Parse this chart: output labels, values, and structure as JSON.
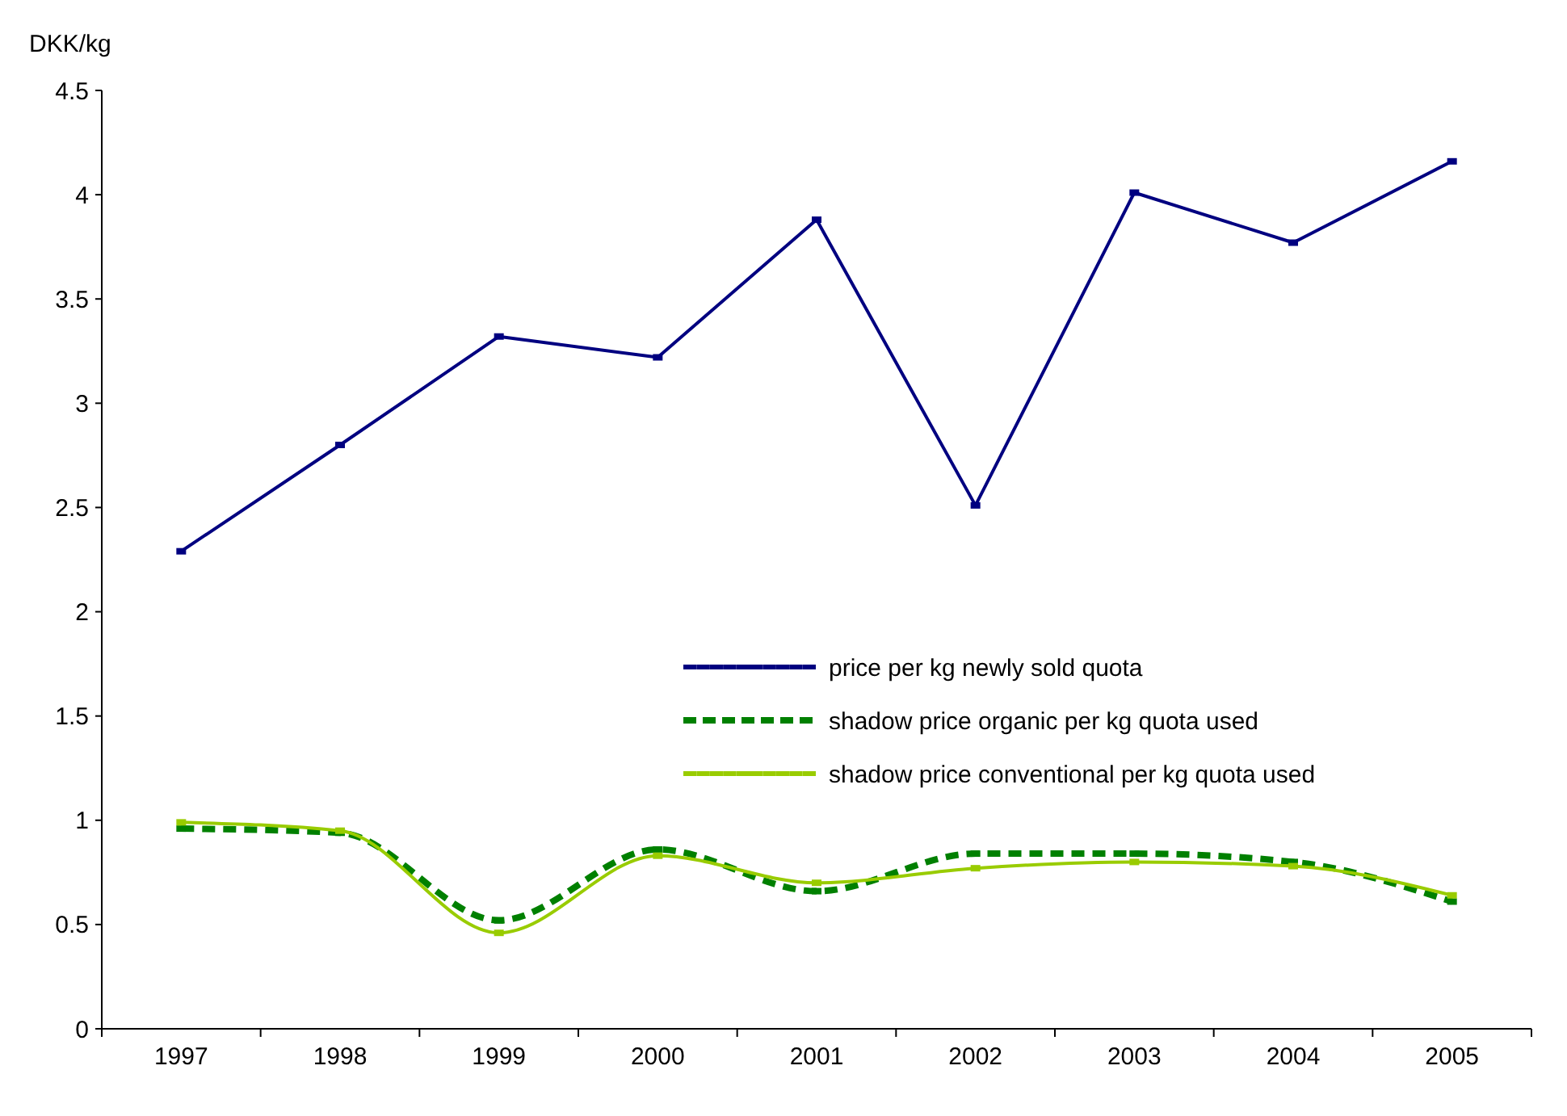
{
  "chart_data": {
    "type": "line",
    "ylabel": "DKK/kg",
    "categories": [
      "1997",
      "1998",
      "1999",
      "2000",
      "2001",
      "2002",
      "2003",
      "2004",
      "2005"
    ],
    "series": [
      {
        "name": "price per kg newly sold quota",
        "color": "#000080",
        "line_style": "solid",
        "values": [
          2.29,
          2.8,
          3.32,
          3.22,
          3.88,
          2.51,
          4.01,
          3.77,
          4.16
        ]
      },
      {
        "name": "shadow price organic per kg quota used",
        "color": "#008000",
        "line_style": "dashed",
        "values": [
          0.96,
          0.94,
          0.52,
          0.86,
          0.66,
          0.84,
          0.84,
          0.8,
          0.61
        ]
      },
      {
        "name": "shadow price conventional per kg quota used",
        "color": "#99cc00",
        "line_style": "solid",
        "values": [
          0.99,
          0.95,
          0.46,
          0.83,
          0.7,
          0.77,
          0.8,
          0.78,
          0.64
        ]
      }
    ],
    "ylim": [
      0,
      4.5
    ],
    "yticks": [
      0,
      0.5,
      1,
      {
        "value": 1.5,
        "label": "1.5"
      },
      2,
      2.5,
      3,
      3.5,
      4,
      4.5
    ],
    "grid": false,
    "legend": "right",
    "marker": "square"
  }
}
